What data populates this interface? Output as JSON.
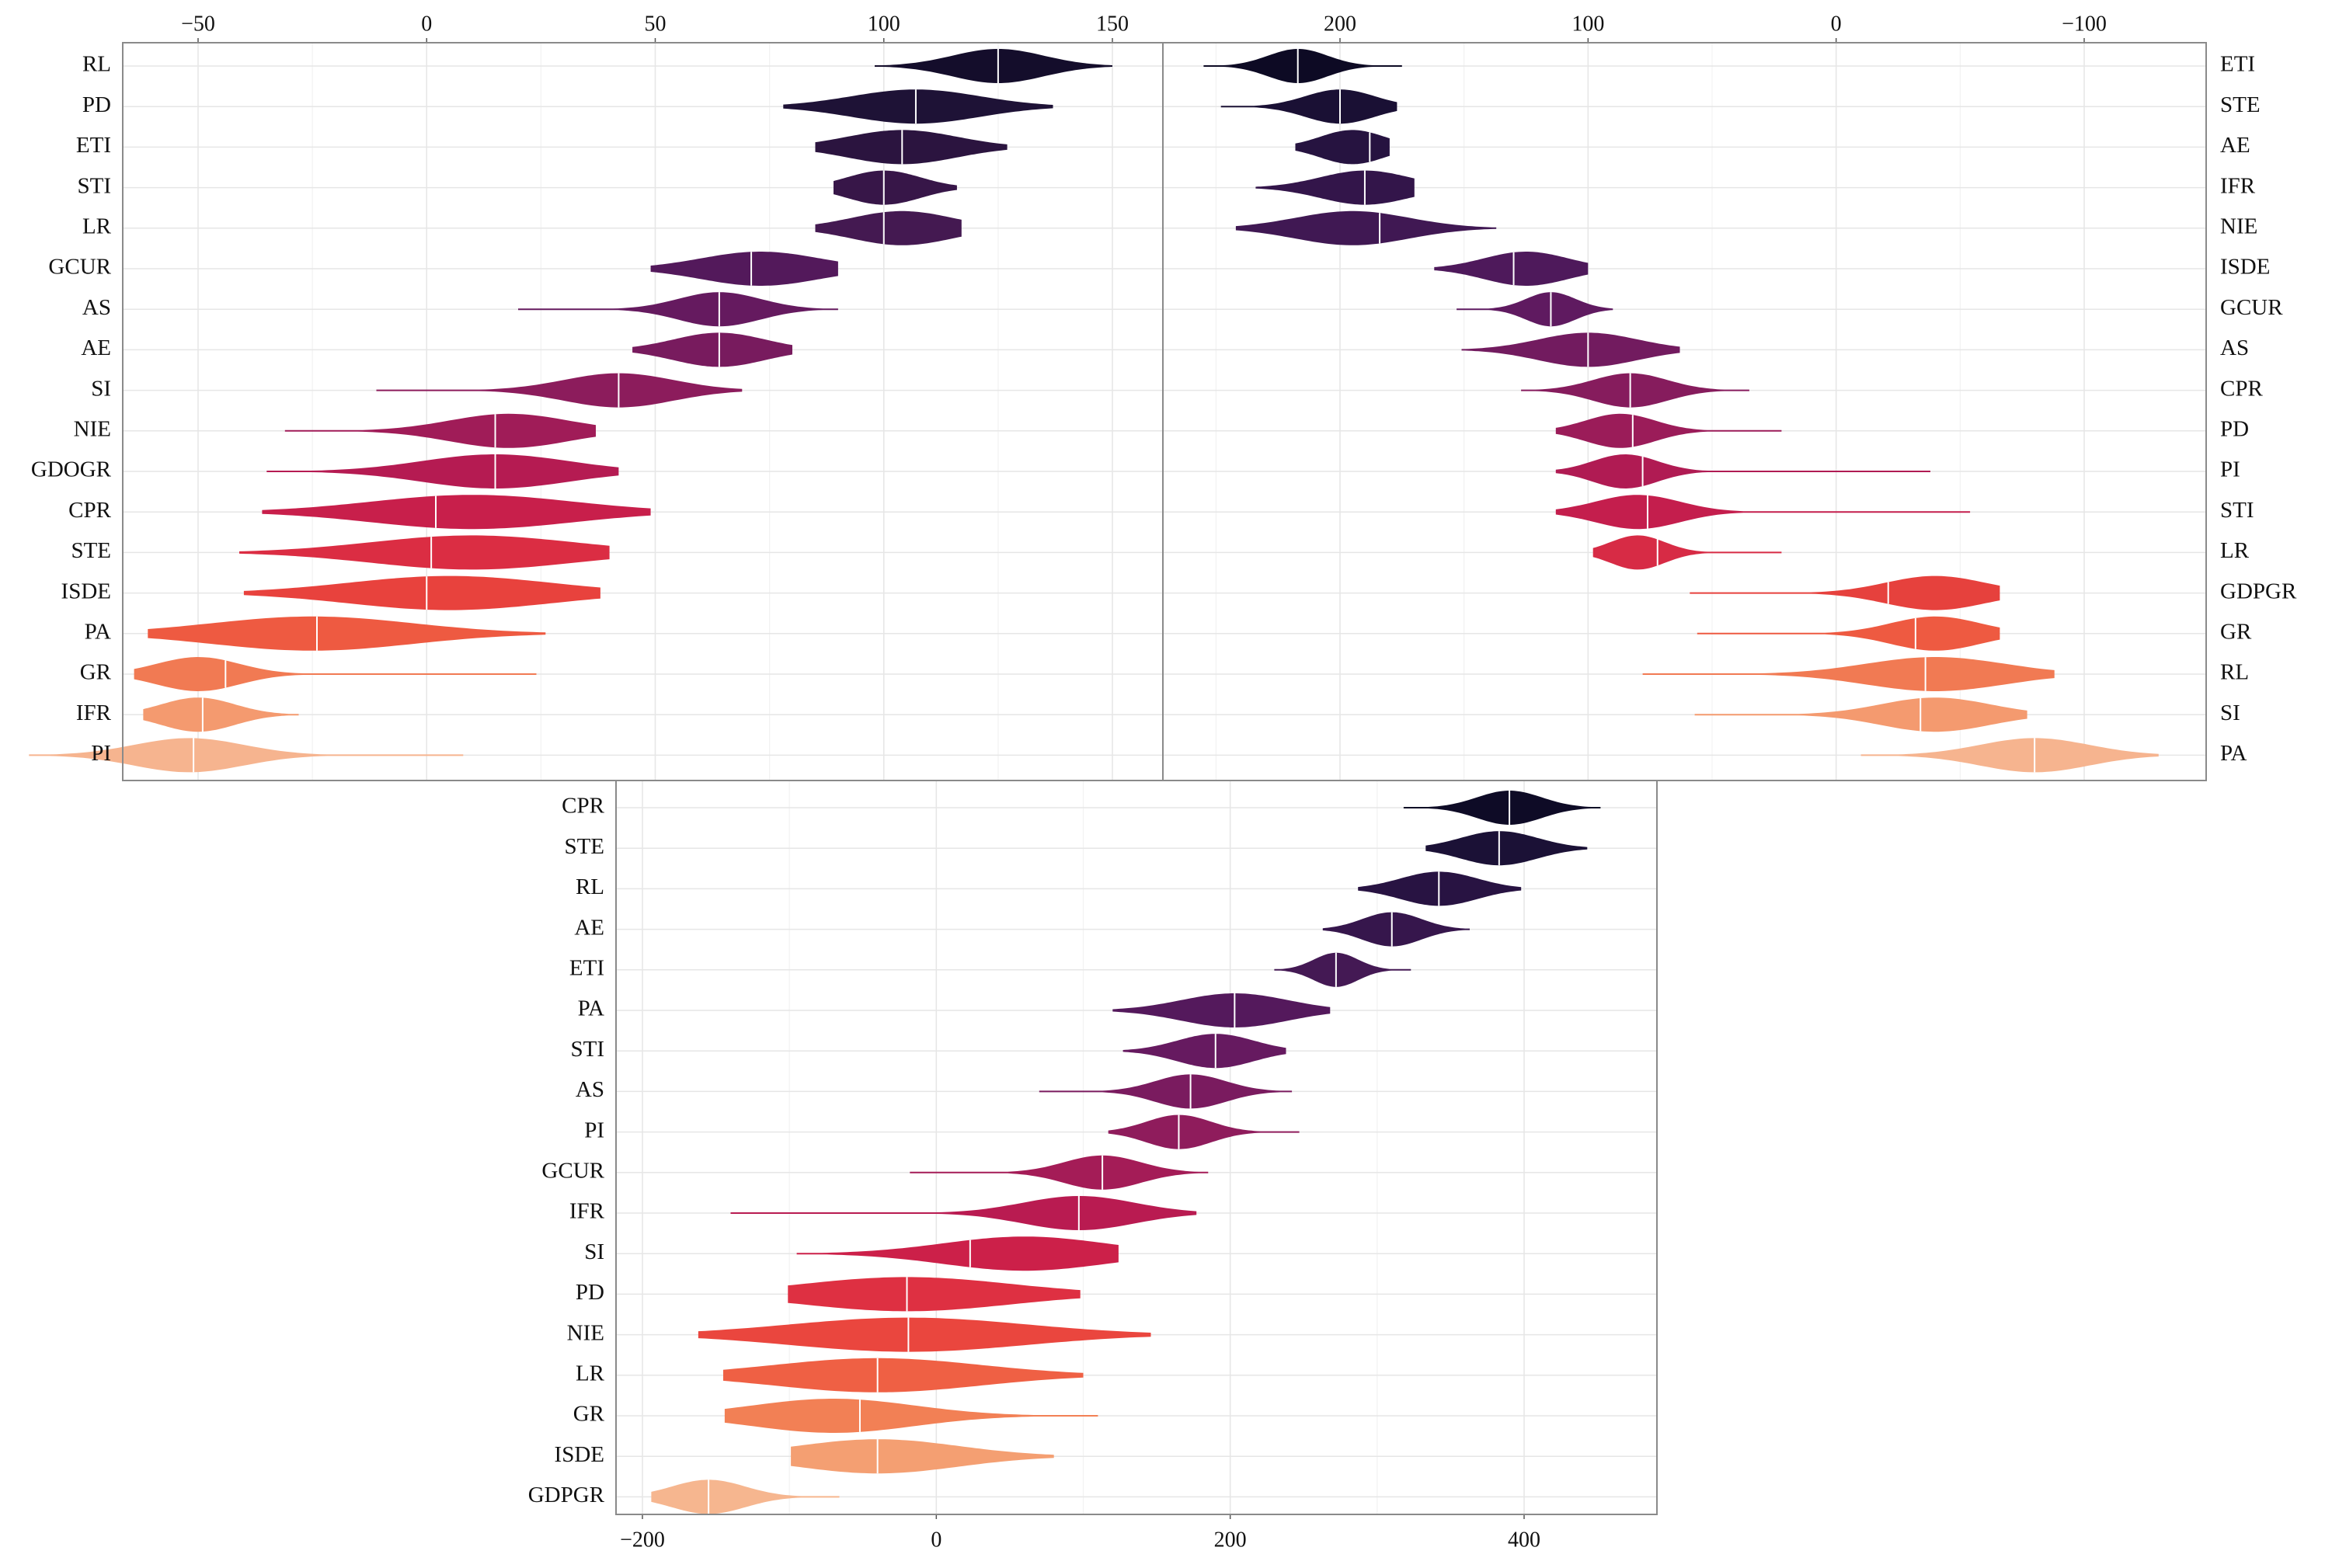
{
  "chart_data": [
    {
      "type": "violin",
      "panel": "top-left",
      "x_reversed": false,
      "xlim": [
        -86,
        152
      ],
      "x_ticks": [
        -50,
        0,
        50,
        100,
        150
      ],
      "x_tick_labels": [
        "−50",
        "0",
        "50",
        "100",
        "150"
      ],
      "x_axis_position": "top",
      "y_labels_side": "left",
      "grid": true,
      "series": [
        {
          "name": "RL",
          "min": 98,
          "max": 150,
          "median": 125,
          "mode": 125,
          "spread": 10,
          "color": "#140d2b"
        },
        {
          "name": "PD",
          "min": 78,
          "max": 137,
          "median": 107,
          "mode": 107,
          "spread": 14,
          "color": "#1e1236"
        },
        {
          "name": "ETI",
          "min": 85,
          "max": 127,
          "median": 104,
          "mode": 104,
          "spread": 12,
          "color": "#2b143f"
        },
        {
          "name": "STI",
          "min": 89,
          "max": 116,
          "median": 100,
          "mode": 100,
          "spread": 8,
          "color": "#371648"
        },
        {
          "name": "LR",
          "min": 85,
          "max": 117,
          "median": 100,
          "mode": 104,
          "spread": 11,
          "color": "#441951"
        },
        {
          "name": "GCUR",
          "min": 49,
          "max": 90,
          "median": 71,
          "mode": 73,
          "spread": 13,
          "color": "#53195b"
        },
        {
          "name": "AS",
          "min": 20,
          "max": 90,
          "median": 64,
          "mode": 64,
          "spread": 9,
          "color": "#651a5f"
        },
        {
          "name": "AE",
          "min": 45,
          "max": 80,
          "median": 64,
          "mode": 64,
          "spread": 10,
          "color": "#781b5e"
        },
        {
          "name": "SI",
          "min": -11,
          "max": 69,
          "median": 42,
          "mode": 42,
          "spread": 12,
          "color": "#8c1c5c"
        },
        {
          "name": "NIE",
          "min": -31,
          "max": 37,
          "median": 15,
          "mode": 18,
          "spread": 13,
          "color": "#a01c58"
        },
        {
          "name": "GDOGR",
          "min": -35,
          "max": 42,
          "median": 15,
          "mode": 15,
          "spread": 16,
          "color": "#b51b52"
        },
        {
          "name": "CPR",
          "min": -36,
          "max": 49,
          "median": 2,
          "mode": 10,
          "spread": 22,
          "color": "#c81f4b"
        },
        {
          "name": "STE",
          "min": -41,
          "max": 40,
          "median": 1,
          "mode": 10,
          "spread": 22,
          "color": "#db2d43"
        },
        {
          "name": "ISDE",
          "min": -40,
          "max": 38,
          "median": 0,
          "mode": 5,
          "spread": 22,
          "color": "#e8423d"
        },
        {
          "name": "PA",
          "min": -61,
          "max": 26,
          "median": -24,
          "mode": -25,
          "spread": 22,
          "color": "#ee5a41"
        },
        {
          "name": "GR",
          "min": -64,
          "max": 24,
          "median": -44,
          "mode": -50,
          "spread": 9,
          "color": "#f17a53"
        },
        {
          "name": "IFR",
          "min": -62,
          "max": -28,
          "median": -49,
          "mode": -50,
          "spread": 8,
          "color": "#f49a6f"
        },
        {
          "name": "PI",
          "min": -87,
          "max": 8,
          "median": -51,
          "mode": -52,
          "spread": 12,
          "color": "#f6b48f"
        }
      ]
    },
    {
      "type": "violin",
      "panel": "top-right",
      "x_reversed": true,
      "xlim": [
        -150,
        255
      ],
      "x_ticks": [
        200,
        100,
        0,
        -100
      ],
      "x_tick_labels": [
        "200",
        "100",
        "0",
        "−100"
      ],
      "x_axis_position": "top",
      "y_labels_side": "right",
      "grid": true,
      "series": [
        {
          "name": "ETI",
          "min": 175,
          "max": 255,
          "median": 217,
          "mode": 217,
          "spread": 12,
          "color": "#0d0a24"
        },
        {
          "name": "STE",
          "min": 177,
          "max": 248,
          "median": 200,
          "mode": 200,
          "spread": 14,
          "color": "#1a1034"
        },
        {
          "name": "AE",
          "min": 180,
          "max": 218,
          "median": 188,
          "mode": 195,
          "spread": 13,
          "color": "#261340"
        },
        {
          "name": "IFR",
          "min": 170,
          "max": 234,
          "median": 190,
          "mode": 190,
          "spread": 18,
          "color": "#33154a"
        },
        {
          "name": "NIE",
          "min": 137,
          "max": 242,
          "median": 184,
          "mode": 195,
          "spread": 23,
          "color": "#401853"
        },
        {
          "name": "ISDE",
          "min": 100,
          "max": 162,
          "median": 130,
          "mode": 125,
          "spread": 17,
          "color": "#4e195b"
        },
        {
          "name": "GCUR",
          "min": 90,
          "max": 153,
          "median": 115,
          "mode": 115,
          "spread": 10,
          "color": "#5f1a60"
        },
        {
          "name": "AS",
          "min": 63,
          "max": 151,
          "median": 100,
          "mode": 100,
          "spread": 20,
          "color": "#721b5f"
        },
        {
          "name": "CPR",
          "min": 35,
          "max": 127,
          "median": 83,
          "mode": 83,
          "spread": 15,
          "color": "#861c5d"
        },
        {
          "name": "PD",
          "min": 22,
          "max": 113,
          "median": 82,
          "mode": 87,
          "spread": 14,
          "color": "#9b1c59"
        },
        {
          "name": "PI",
          "min": -38,
          "max": 113,
          "median": 78,
          "mode": 85,
          "spread": 13,
          "color": "#b01b53"
        },
        {
          "name": "STI",
          "min": -54,
          "max": 113,
          "median": 76,
          "mode": 80,
          "spread": 17,
          "color": "#c41e4d"
        },
        {
          "name": "LR",
          "min": 22,
          "max": 98,
          "median": 72,
          "mode": 80,
          "spread": 11,
          "color": "#d72b45"
        },
        {
          "name": "GDPGR",
          "min": -66,
          "max": 59,
          "median": -21,
          "mode": -40,
          "spread": 20,
          "color": "#e6413d"
        },
        {
          "name": "GR",
          "min": -66,
          "max": 56,
          "median": -32,
          "mode": -40,
          "spread": 18,
          "color": "#ee5a41"
        },
        {
          "name": "RL",
          "min": -88,
          "max": 78,
          "median": -36,
          "mode": -40,
          "spread": 28,
          "color": "#f17a53"
        },
        {
          "name": "SI",
          "min": -77,
          "max": 57,
          "median": -34,
          "mode": -40,
          "spread": 22,
          "color": "#f49a6f"
        },
        {
          "name": "PA",
          "min": -130,
          "max": -10,
          "median": -80,
          "mode": -80,
          "spread": 22,
          "color": "#f6b48f"
        }
      ]
    },
    {
      "type": "violin",
      "panel": "bottom",
      "x_reversed": false,
      "xlim": [
        -215,
        485
      ],
      "x_ticks": [
        -200,
        0,
        200,
        400
      ],
      "x_tick_labels": [
        "−200",
        "0",
        "200",
        "400"
      ],
      "x_axis_position": "bottom",
      "y_labels_side": "left",
      "grid": true,
      "series": [
        {
          "name": "CPR",
          "min": 318,
          "max": 452,
          "median": 390,
          "mode": 390,
          "spread": 22,
          "color": "#0e0b26"
        },
        {
          "name": "STE",
          "min": 333,
          "max": 443,
          "median": 383,
          "mode": 383,
          "spread": 26,
          "color": "#1b1136"
        },
        {
          "name": "RL",
          "min": 287,
          "max": 398,
          "median": 342,
          "mode": 342,
          "spread": 26,
          "color": "#281342"
        },
        {
          "name": "AE",
          "min": 263,
          "max": 363,
          "median": 310,
          "mode": 310,
          "spread": 20,
          "color": "#36164c"
        },
        {
          "name": "ETI",
          "min": 230,
          "max": 323,
          "median": 272,
          "mode": 272,
          "spread": 15,
          "color": "#441954"
        },
        {
          "name": "PA",
          "min": 120,
          "max": 268,
          "median": 203,
          "mode": 203,
          "spread": 36,
          "color": "#54195c"
        },
        {
          "name": "STI",
          "min": 127,
          "max": 238,
          "median": 190,
          "mode": 190,
          "spread": 26,
          "color": "#661a60"
        },
        {
          "name": "AS",
          "min": 70,
          "max": 242,
          "median": 173,
          "mode": 173,
          "spread": 24,
          "color": "#7a1b5f"
        },
        {
          "name": "PI",
          "min": 117,
          "max": 247,
          "median": 165,
          "mode": 165,
          "spread": 22,
          "color": "#8f1c5c"
        },
        {
          "name": "GCUR",
          "min": -18,
          "max": 185,
          "median": 113,
          "mode": 113,
          "spread": 26,
          "color": "#a41c57"
        },
        {
          "name": "IFR",
          "min": -140,
          "max": 177,
          "median": 97,
          "mode": 97,
          "spread": 38,
          "color": "#b91b51"
        },
        {
          "name": "SI",
          "min": -95,
          "max": 124,
          "median": 23,
          "mode": 60,
          "spread": 55,
          "color": "#cc2049"
        },
        {
          "name": "PD",
          "min": -101,
          "max": 98,
          "median": -20,
          "mode": -20,
          "spread": 70,
          "color": "#de3042"
        },
        {
          "name": "NIE",
          "min": -162,
          "max": 146,
          "median": -19,
          "mode": -19,
          "spread": 80,
          "color": "#ea463e"
        },
        {
          "name": "LR",
          "min": -145,
          "max": 100,
          "median": -40,
          "mode": -40,
          "spread": 70,
          "color": "#ef6044"
        },
        {
          "name": "GR",
          "min": -144,
          "max": 110,
          "median": -52,
          "mode": -70,
          "spread": 55,
          "color": "#f28055"
        },
        {
          "name": "ISDE",
          "min": -99,
          "max": 80,
          "median": -40,
          "mode": -40,
          "spread": 55,
          "color": "#f49f72"
        },
        {
          "name": "GDPGR",
          "min": -194,
          "max": -66,
          "median": -155,
          "mode": -155,
          "spread": 25,
          "color": "#f6b68f"
        }
      ]
    }
  ]
}
